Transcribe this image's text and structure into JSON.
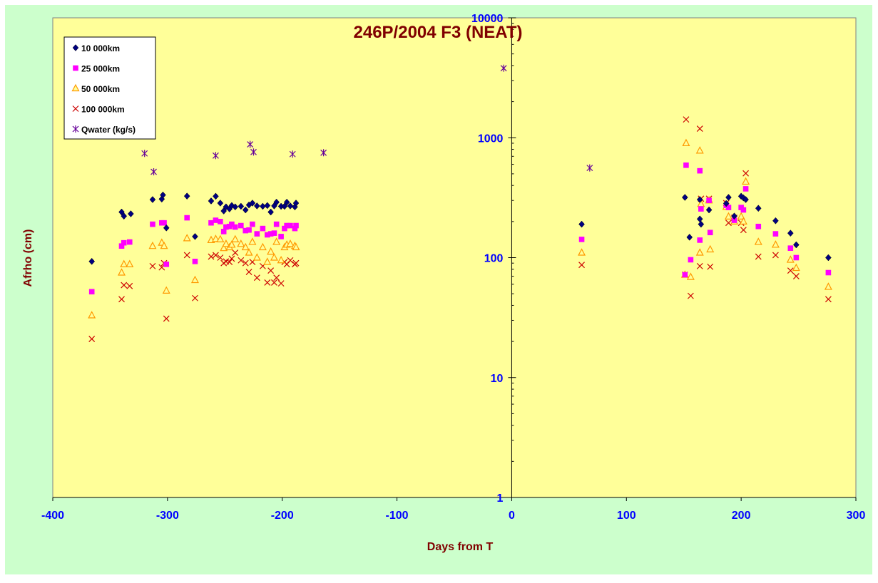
{
  "chart_data": {
    "type": "scatter",
    "title": "246P/2004 F3 (NEAT)",
    "xlabel": "Days from T",
    "ylabel": "Afrho (cm)",
    "xlim": [
      -400,
      300
    ],
    "ylim": [
      1,
      10000
    ],
    "y_scale": "log",
    "x_ticks": [
      "-400",
      "-300",
      "-200",
      "-100",
      "0",
      "100",
      "200",
      "300"
    ],
    "y_ticks": [
      "1",
      "10",
      "100",
      "1000",
      "10000"
    ],
    "grid": false,
    "legend_position": "top-left",
    "colors": {
      "outer_background": "#ccffcc",
      "plot_background": "#ffff99",
      "title": "#800000",
      "axis_label": "#800000",
      "tick_label": "#0000ff"
    },
    "series": [
      {
        "name": "10 000km",
        "marker": "diamond",
        "color": "#000080",
        "points": [
          [
            -366,
            93
          ],
          [
            -340,
            240
          ],
          [
            -338,
            222
          ],
          [
            -332,
            232
          ],
          [
            -313,
            305
          ],
          [
            -305,
            308
          ],
          [
            -304,
            333
          ],
          [
            -301,
            177
          ],
          [
            -283,
            326
          ],
          [
            -276,
            150
          ],
          [
            -262,
            297
          ],
          [
            -258,
            325
          ],
          [
            -254,
            285
          ],
          [
            -251,
            245
          ],
          [
            -249,
            265
          ],
          [
            -246,
            255
          ],
          [
            -244,
            272
          ],
          [
            -241,
            265
          ],
          [
            -236,
            268
          ],
          [
            -232,
            250
          ],
          [
            -229,
            275
          ],
          [
            -226,
            285
          ],
          [
            -222,
            270
          ],
          [
            -217,
            268
          ],
          [
            -213,
            272
          ],
          [
            -210,
            240
          ],
          [
            -207,
            270
          ],
          [
            -205,
            290
          ],
          [
            -201,
            268
          ],
          [
            -198,
            268
          ],
          [
            -196,
            290
          ],
          [
            -193,
            270
          ],
          [
            -189,
            265
          ],
          [
            -188,
            285
          ],
          [
            61,
            190
          ],
          [
            151,
            318
          ],
          [
            155,
            148
          ],
          [
            164,
            305
          ],
          [
            164,
            210
          ],
          [
            165,
            190
          ],
          [
            172,
            250
          ],
          [
            187,
            283
          ],
          [
            189,
            318
          ],
          [
            194,
            222
          ],
          [
            200,
            325
          ],
          [
            202,
            315
          ],
          [
            204,
            305
          ],
          [
            215,
            258
          ],
          [
            230,
            203
          ],
          [
            243,
            160
          ],
          [
            248,
            128
          ],
          [
            276,
            100
          ]
        ]
      },
      {
        "name": "25 000km",
        "marker": "square",
        "color": "#ff00ff",
        "points": [
          [
            -366,
            52
          ],
          [
            -340,
            125
          ],
          [
            -338,
            133
          ],
          [
            -333,
            135
          ],
          [
            -313,
            190
          ],
          [
            -305,
            195
          ],
          [
            -303,
            195
          ],
          [
            -301,
            88
          ],
          [
            -283,
            215
          ],
          [
            -276,
            93
          ],
          [
            -262,
            195
          ],
          [
            -258,
            205
          ],
          [
            -254,
            200
          ],
          [
            -251,
            165
          ],
          [
            -249,
            180
          ],
          [
            -246,
            182
          ],
          [
            -244,
            190
          ],
          [
            -241,
            180
          ],
          [
            -236,
            185
          ],
          [
            -232,
            168
          ],
          [
            -229,
            170
          ],
          [
            -226,
            190
          ],
          [
            -222,
            158
          ],
          [
            -217,
            175
          ],
          [
            -213,
            155
          ],
          [
            -210,
            158
          ],
          [
            -207,
            160
          ],
          [
            -205,
            190
          ],
          [
            -201,
            150
          ],
          [
            -198,
            175
          ],
          [
            -196,
            185
          ],
          [
            -193,
            185
          ],
          [
            -189,
            175
          ],
          [
            -188,
            185
          ],
          [
            61,
            142
          ],
          [
            151,
            72
          ],
          [
            152,
            590
          ],
          [
            156,
            96
          ],
          [
            164,
            140
          ],
          [
            164,
            530
          ],
          [
            165,
            255
          ],
          [
            172,
            300
          ],
          [
            173,
            162
          ],
          [
            187,
            273
          ],
          [
            189,
            262
          ],
          [
            194,
            205
          ],
          [
            200,
            262
          ],
          [
            202,
            250
          ],
          [
            204,
            375
          ],
          [
            215,
            182
          ],
          [
            230,
            158
          ],
          [
            243,
            120
          ],
          [
            248,
            100
          ],
          [
            276,
            75
          ]
        ]
      },
      {
        "name": "50 000km",
        "marker": "triangle",
        "color": "#ff9900",
        "points": [
          [
            -366,
            33
          ],
          [
            -340,
            75
          ],
          [
            -338,
            88
          ],
          [
            -333,
            88
          ],
          [
            -313,
            125
          ],
          [
            -305,
            133
          ],
          [
            -303,
            125
          ],
          [
            -301,
            53
          ],
          [
            -283,
            145
          ],
          [
            -276,
            65
          ],
          [
            -262,
            140
          ],
          [
            -258,
            143
          ],
          [
            -254,
            142
          ],
          [
            -251,
            120
          ],
          [
            -249,
            130
          ],
          [
            -246,
            122
          ],
          [
            -244,
            128
          ],
          [
            -241,
            142
          ],
          [
            -236,
            130
          ],
          [
            -232,
            122
          ],
          [
            -229,
            110
          ],
          [
            -226,
            135
          ],
          [
            -222,
            100
          ],
          [
            -217,
            122
          ],
          [
            -213,
            92
          ],
          [
            -210,
            112
          ],
          [
            -207,
            100
          ],
          [
            -205,
            135
          ],
          [
            -201,
            95
          ],
          [
            -198,
            122
          ],
          [
            -196,
            128
          ],
          [
            -193,
            130
          ],
          [
            -189,
            125
          ],
          [
            -188,
            122
          ],
          [
            61,
            110
          ],
          [
            151,
            72
          ],
          [
            152,
            900
          ],
          [
            156,
            69
          ],
          [
            164,
            110
          ],
          [
            164,
            780
          ],
          [
            165,
            280
          ],
          [
            172,
            300
          ],
          [
            173,
            117
          ],
          [
            187,
            265
          ],
          [
            189,
            220
          ],
          [
            194,
            200
          ],
          [
            200,
            220
          ],
          [
            202,
            200
          ],
          [
            204,
            430
          ],
          [
            215,
            135
          ],
          [
            230,
            128
          ],
          [
            243,
            96
          ],
          [
            248,
            82
          ],
          [
            276,
            57
          ]
        ]
      },
      {
        "name": "100 000km",
        "marker": "x",
        "color": "#cc0000",
        "points": [
          [
            -366,
            21
          ],
          [
            -340,
            45
          ],
          [
            -338,
            59
          ],
          [
            -333,
            58
          ],
          [
            -313,
            85
          ],
          [
            -305,
            83
          ],
          [
            -303,
            90
          ],
          [
            -301,
            31
          ],
          [
            -283,
            105
          ],
          [
            -276,
            46
          ],
          [
            -262,
            102
          ],
          [
            -258,
            105
          ],
          [
            -254,
            100
          ],
          [
            -251,
            90
          ],
          [
            -249,
            93
          ],
          [
            -246,
            92
          ],
          [
            -244,
            98
          ],
          [
            -241,
            110
          ],
          [
            -236,
            95
          ],
          [
            -232,
            90
          ],
          [
            -229,
            76
          ],
          [
            -226,
            92
          ],
          [
            -222,
            68
          ],
          [
            -217,
            85
          ],
          [
            -213,
            62
          ],
          [
            -210,
            78
          ],
          [
            -207,
            62
          ],
          [
            -205,
            68
          ],
          [
            -201,
            61
          ],
          [
            -198,
            92
          ],
          [
            -196,
            88
          ],
          [
            -193,
            95
          ],
          [
            -189,
            88
          ],
          [
            -188,
            90
          ],
          [
            61,
            87
          ],
          [
            151,
            72
          ],
          [
            152,
            1420
          ],
          [
            156,
            48
          ],
          [
            164,
            85
          ],
          [
            164,
            1190
          ],
          [
            165,
            310
          ],
          [
            172,
            310
          ],
          [
            173,
            84
          ],
          [
            187,
            285
          ],
          [
            189,
            195
          ],
          [
            194,
            215
          ],
          [
            200,
            195
          ],
          [
            202,
            170
          ],
          [
            204,
            505
          ],
          [
            215,
            102
          ],
          [
            230,
            105
          ],
          [
            243,
            78
          ],
          [
            248,
            70
          ],
          [
            276,
            45
          ]
        ]
      },
      {
        "name": "Qwater (kg/s)",
        "marker": "asterisk",
        "color": "#660099",
        "points": [
          [
            -320,
            740
          ],
          [
            -312,
            520
          ],
          [
            -258,
            710
          ],
          [
            -228,
            880
          ],
          [
            -225,
            760
          ],
          [
            -191,
            730
          ],
          [
            -164,
            750
          ],
          [
            -7,
            3800
          ],
          [
            68,
            560
          ]
        ]
      }
    ]
  }
}
